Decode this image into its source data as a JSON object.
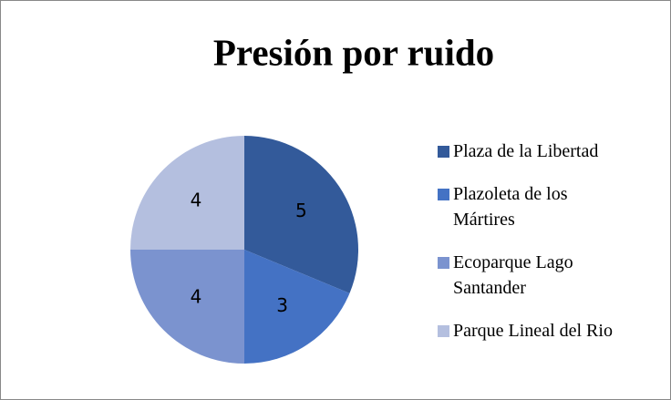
{
  "chart_data": {
    "type": "pie",
    "title": "Presión por ruido",
    "categories": [
      "Plaza de la Libertad",
      "Plazoleta de los Mártires",
      "Ecoparque Lago Santander",
      "Parque Lineal del Rio"
    ],
    "values": [
      5,
      3,
      4,
      4
    ],
    "colors": [
      "#335a9a",
      "#4472c4",
      "#7b93cf",
      "#b4bfdf"
    ],
    "legend": "right"
  }
}
